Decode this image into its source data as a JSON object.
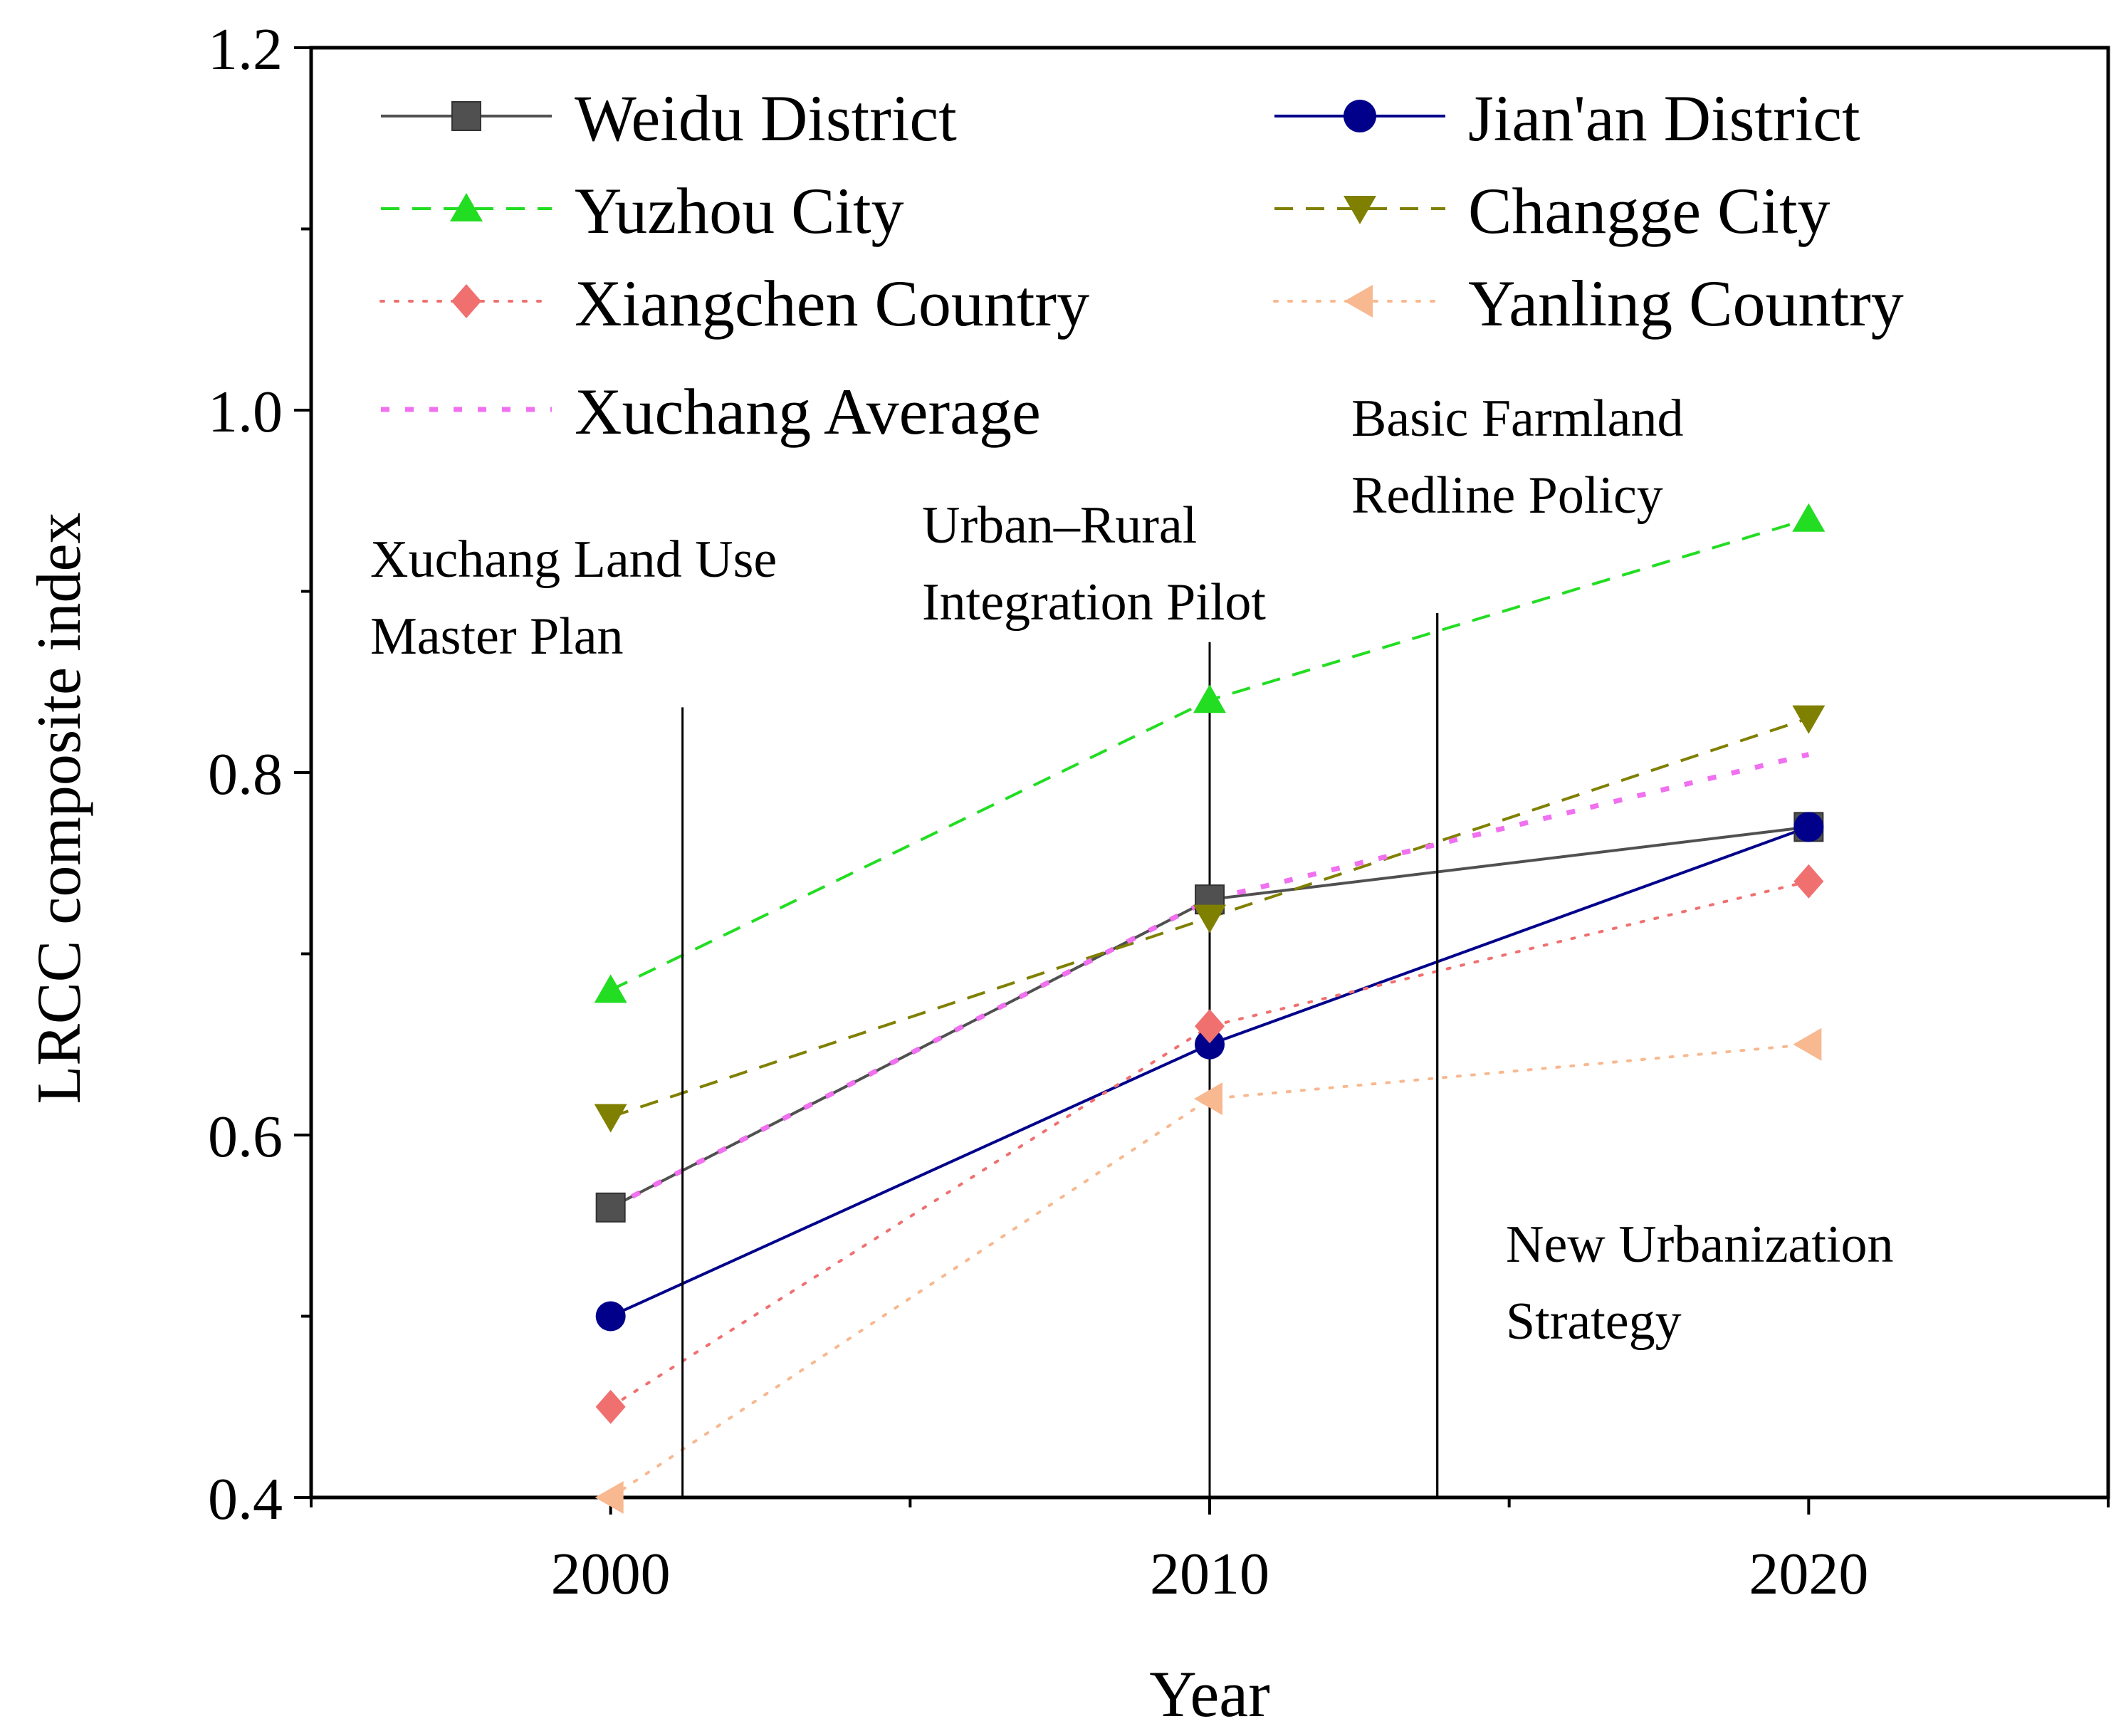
{
  "chart_data": {
    "type": "line",
    "title": "",
    "xlabel": "Year",
    "ylabel": "LRCC composite index",
    "x": [
      2000,
      2010,
      2020
    ],
    "xticks": [
      "2000",
      "2010",
      "2020"
    ],
    "xlim": [
      1995,
      2025
    ],
    "ylim": [
      0.4,
      1.2
    ],
    "yticks": [
      "0.4",
      "0.6",
      "0.8",
      "1.0",
      "1.2"
    ],
    "grid": false,
    "legend_position": "top",
    "series": [
      {
        "name": "Weidu District",
        "values": [
          0.56,
          0.73,
          0.77
        ],
        "color": "#505050",
        "marker": "square",
        "line": "solid"
      },
      {
        "name": "Jian'an District",
        "values": [
          0.5,
          0.65,
          0.77
        ],
        "color": "#00008B",
        "marker": "circle",
        "line": "solid"
      },
      {
        "name": "Yuzhou City",
        "values": [
          0.68,
          0.84,
          0.94
        ],
        "color": "#22DD22",
        "marker": "triangle-up",
        "line": "dashed"
      },
      {
        "name": "Changge City",
        "values": [
          0.61,
          0.72,
          0.83
        ],
        "color": "#808000",
        "marker": "triangle-down",
        "line": "dashed"
      },
      {
        "name": "Xiangchen Country",
        "values": [
          0.45,
          0.66,
          0.74
        ],
        "color": "#F07070",
        "marker": "diamond",
        "line": "dotted"
      },
      {
        "name": "Yanling Country",
        "values": [
          0.4,
          0.62,
          0.65
        ],
        "color": "#F8B890",
        "marker": "triangle-left",
        "line": "dotted"
      },
      {
        "name": "Xuchang Average",
        "values": [
          0.56,
          0.73,
          0.81
        ],
        "color": "#F070F0",
        "marker": "none",
        "line": "short-dash"
      }
    ],
    "policy_lines": [
      {
        "x": 2001.2,
        "top": 0.836,
        "label": [
          "Xuchang Land Use",
          "Master Plan"
        ]
      },
      {
        "x": 2010.0,
        "top": 0.872,
        "label": [
          "Urban–Rural",
          "Integration Pilot"
        ]
      },
      {
        "x": 2013.8,
        "top": 0.888,
        "label": [
          "Basic Farmland",
          "Redline Policy"
        ]
      },
      {
        "x": 2013.8,
        "top": 0.888,
        "label": [
          "New Urbanization",
          "Strategy"
        ]
      }
    ]
  }
}
